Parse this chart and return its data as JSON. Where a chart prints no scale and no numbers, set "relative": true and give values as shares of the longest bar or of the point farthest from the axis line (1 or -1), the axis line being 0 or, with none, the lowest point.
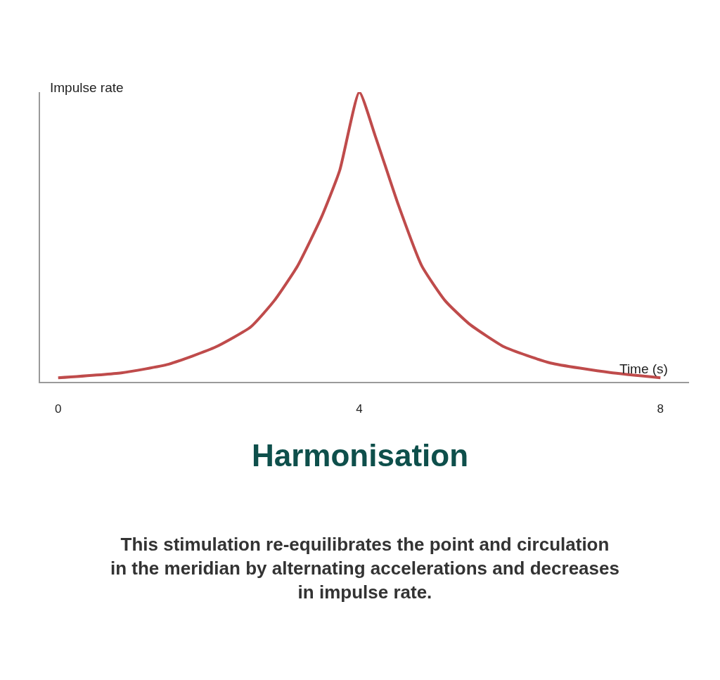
{
  "chart_data": {
    "type": "line",
    "title": "Harmonisation",
    "subtitle": "This stimulation re-equilibrates the point and circulation in the meridian by alternating accelerations and decreases in impulse rate.",
    "xlabel": "Time (s)",
    "ylabel": "Impulse rate",
    "relative": true,
    "x": [
      0,
      0.84,
      1.47,
      2.09,
      2.56,
      2.87,
      3.18,
      3.5,
      3.74,
      4.0,
      4.21,
      4.52,
      4.83,
      5.14,
      5.46,
      5.93,
      6.54,
      7.33,
      8.0
    ],
    "series": [
      {
        "color": "#bf4b4b",
        "values": [
          0.014,
          0.031,
          0.061,
          0.12,
          0.19,
          0.28,
          0.4,
          0.57,
          0.73,
          1.0,
          0.85,
          0.61,
          0.4,
          0.28,
          0.2,
          0.12,
          0.065,
          0.032,
          0.014
        ]
      }
    ],
    "xlim": [
      -0.24,
      8.38
    ],
    "xticks": [
      0,
      4,
      8
    ]
  }
}
